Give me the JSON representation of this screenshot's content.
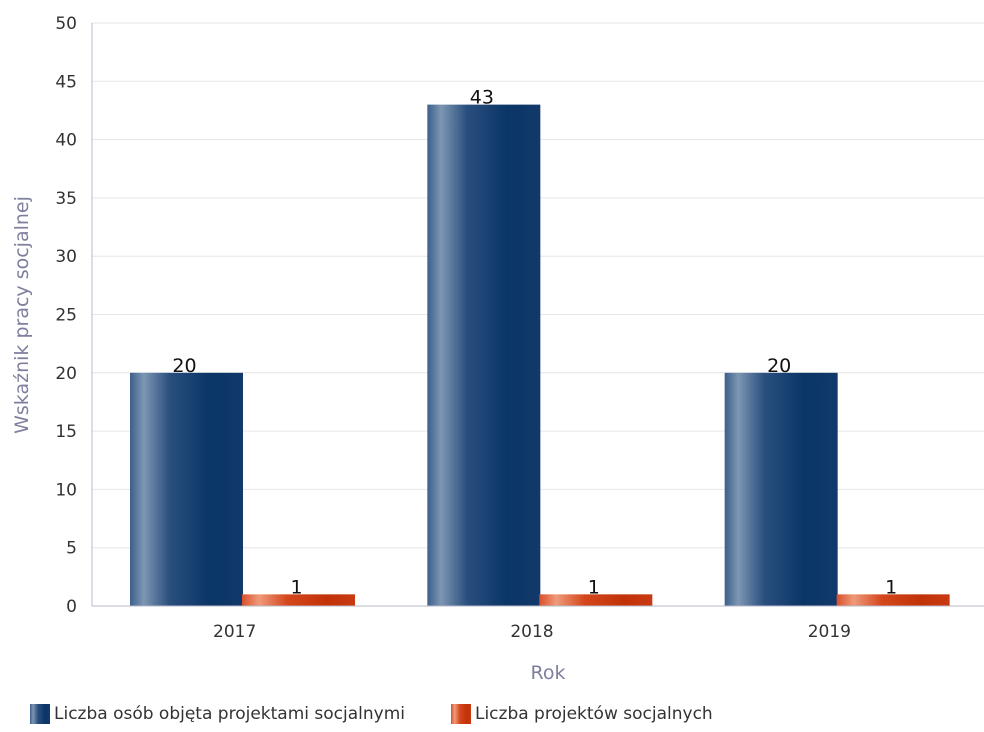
{
  "chart_data": {
    "type": "bar",
    "categories": [
      "2017",
      "2018",
      "2019"
    ],
    "series": [
      {
        "name": "Liczba osób objęta projektami socjalnymi",
        "values": [
          20,
          43,
          20
        ],
        "color": "#0b3669",
        "data_labels": [
          "20",
          "43",
          "20"
        ]
      },
      {
        "name": "Liczba projektów socjalnych",
        "values": [
          1,
          1,
          1
        ],
        "color": "#c83a12",
        "data_labels": [
          "1",
          "1",
          "1"
        ]
      }
    ],
    "xlabel": "Rok",
    "ylabel": "Wskaźnik pracy socjalnej",
    "ylim": [
      0,
      50
    ],
    "yticks": [
      "0",
      "5",
      "10",
      "15",
      "20",
      "25",
      "30",
      "35",
      "40",
      "45",
      "50"
    ],
    "grid": true,
    "legend_position": "bottom-left"
  }
}
